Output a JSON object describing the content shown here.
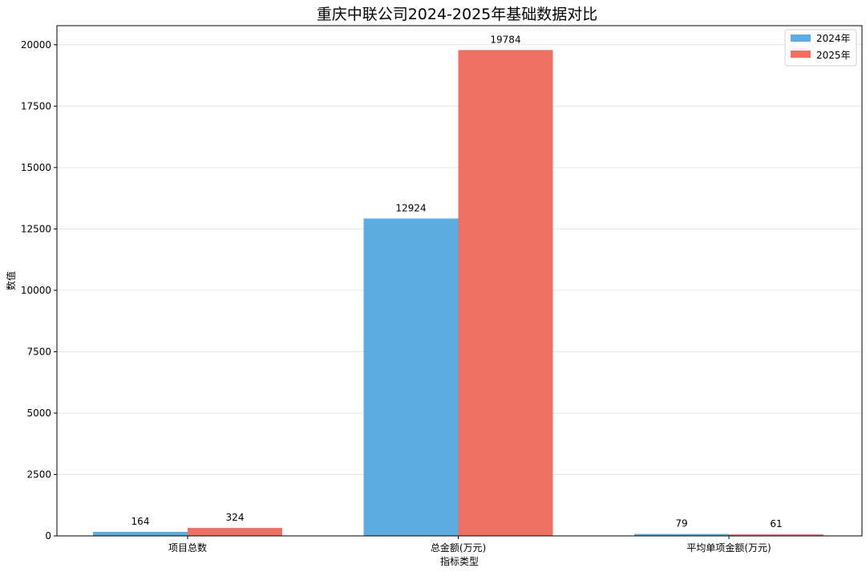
{
  "chart_data": {
    "type": "bar",
    "title": "重庆中联公司2024-2025年基础数据对比",
    "xlabel": "指标类型",
    "ylabel": "数值",
    "categories": [
      "项目总数",
      "总金额(万元)",
      "平均单项金额(万元)"
    ],
    "series": [
      {
        "name": "2024年",
        "values": [
          164,
          12924,
          79
        ],
        "color": "#5DADE2"
      },
      {
        "name": "2025年",
        "values": [
          324,
          19784,
          61
        ],
        "color": "#EC7063"
      }
    ],
    "ylim": [
      0,
      20776
    ],
    "yticks": [
      0,
      2500,
      5000,
      7500,
      10000,
      12500,
      15000,
      17500,
      20000
    ],
    "grid": "y",
    "legend_position": "top-right"
  }
}
